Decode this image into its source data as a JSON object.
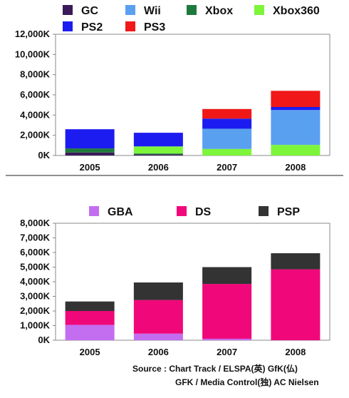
{
  "chart_data": [
    {
      "type": "bar",
      "stacked": true,
      "categories": [
        "2005",
        "2006",
        "2007",
        "2008"
      ],
      "series": [
        {
          "name": "GC",
          "color": "#3b1a5a",
          "values": [
            300,
            100,
            0,
            0
          ]
        },
        {
          "name": "Xbox",
          "color": "#1e7a3c",
          "values": [
            400,
            100,
            0,
            0
          ]
        },
        {
          "name": "PS2",
          "color": "#1c1cf0",
          "values": [
            1900,
            1350,
            1000,
            300
          ]
        },
        {
          "name": "Wii",
          "color": "#5aa0f0",
          "values": [
            0,
            0,
            2000,
            3450
          ]
        },
        {
          "name": "Xbox360",
          "color": "#7cf53a",
          "values": [
            0,
            700,
            650,
            1050
          ]
        },
        {
          "name": "PS3",
          "color": "#f01818",
          "values": [
            0,
            0,
            950,
            1600
          ]
        }
      ],
      "stack_order": [
        "GC",
        "Xbox",
        "Xbox360",
        "Wii",
        "PS2",
        "PS3"
      ],
      "legend_rows": [
        [
          "GC",
          "Wii",
          "Xbox",
          "Xbox360"
        ],
        [
          "PS2",
          "PS3"
        ]
      ],
      "ytick_labels": [
        "0K",
        "2,000K",
        "4,000K",
        "6,000K",
        "8,000K",
        "10,000K",
        "12,000K"
      ],
      "ylim": [
        0,
        12000
      ],
      "ystep": 2000,
      "grid": false,
      "legend": "top"
    },
    {
      "type": "bar",
      "stacked": true,
      "categories": [
        "2005",
        "2006",
        "2007",
        "2008"
      ],
      "series": [
        {
          "name": "GBA",
          "color": "#c36ef0",
          "values": [
            1050,
            450,
            100,
            0
          ]
        },
        {
          "name": "DS",
          "color": "#f0087a",
          "values": [
            950,
            2300,
            3750,
            4850
          ]
        },
        {
          "name": "PSP",
          "color": "#333333",
          "values": [
            650,
            1200,
            1150,
            1100
          ]
        }
      ],
      "stack_order": [
        "GBA",
        "DS",
        "PSP"
      ],
      "legend_rows": [
        [
          "GBA",
          "DS",
          "PSP"
        ]
      ],
      "ytick_labels": [
        "0K",
        "1,000K",
        "2,000K",
        "3,000K",
        "4,000K",
        "5,000K",
        "6,000K",
        "7,000K",
        "8,000K"
      ],
      "ylim": [
        0,
        8000
      ],
      "ystep": 1000,
      "grid": false,
      "legend": "top"
    }
  ],
  "source": {
    "line1": "Source : Chart Track / ELSPA(英) GfK(仏)",
    "line2": "GFK / Media Control(独) AC Nielsen"
  }
}
